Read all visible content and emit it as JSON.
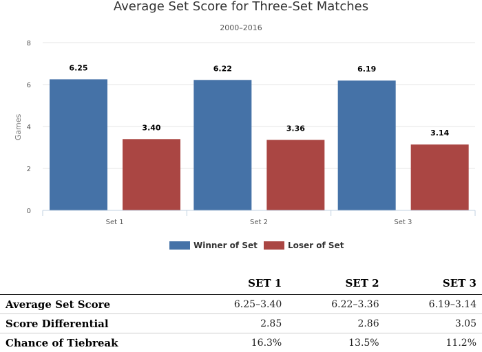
{
  "chart_data": {
    "type": "bar",
    "title": "Average Set Score for Three-Set Matches",
    "subtitle": "2000–2016",
    "ylabel": "Games",
    "xlabel": "",
    "ylim": [
      0,
      8
    ],
    "yticks": [
      0,
      2,
      4,
      6,
      8
    ],
    "categories": [
      "Set 1",
      "Set 2",
      "Set 3"
    ],
    "series": [
      {
        "name": "Winner of Set",
        "color": "#4572a7",
        "values": [
          6.25,
          6.22,
          6.19
        ],
        "labels": [
          "6.25",
          "6.22",
          "6.19"
        ]
      },
      {
        "name": "Loser of Set",
        "color": "#aa4643",
        "values": [
          3.4,
          3.36,
          3.14
        ],
        "labels": [
          "3.40",
          "3.36",
          "3.14"
        ]
      }
    ],
    "legend": "bottom-center",
    "grid": true
  },
  "table": {
    "headers": [
      "",
      "SET 1",
      "SET 2",
      "SET 3"
    ],
    "rows": [
      {
        "label": "Average Set Score",
        "cells": [
          "6.25–3.40",
          "6.22–3.36",
          "6.19–3.14"
        ]
      },
      {
        "label": "Score Differential",
        "cells": [
          "2.85",
          "2.86",
          "3.05"
        ]
      },
      {
        "label": "Chance of Tiebreak",
        "cells": [
          "16.3%",
          "13.5%",
          "11.2%"
        ]
      }
    ]
  }
}
